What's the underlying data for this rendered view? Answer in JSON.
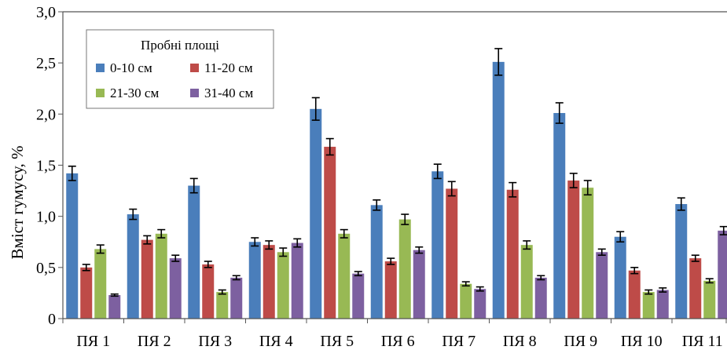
{
  "chart_data": {
    "type": "bar",
    "ylabel": "Вміст гумусу, %",
    "ylim": [
      0,
      3.0
    ],
    "yticks": [
      "0",
      "0,5",
      "1,0",
      "1,5",
      "2,0",
      "2,5",
      "3,0"
    ],
    "categories": [
      "ПЯ 1",
      "ПЯ 2",
      "ПЯ 3",
      "ПЯ 4",
      "ПЯ 5",
      "ПЯ 6",
      "ПЯ 7",
      "ПЯ 8",
      "ПЯ 9",
      "ПЯ 10",
      "ПЯ 11"
    ],
    "legend": {
      "title": "Пробні площі",
      "position": "top-left"
    },
    "grid": false,
    "series": [
      {
        "name": "0-10 см",
        "color": "#4a7ebb",
        "values": [
          1.42,
          1.02,
          1.3,
          0.75,
          2.05,
          1.11,
          1.44,
          2.51,
          2.01,
          0.8,
          1.12
        ],
        "errors": [
          0.07,
          0.05,
          0.07,
          0.04,
          0.11,
          0.05,
          0.07,
          0.13,
          0.1,
          0.05,
          0.06
        ]
      },
      {
        "name": "11-20 см",
        "color": "#be4b48",
        "values": [
          0.5,
          0.77,
          0.53,
          0.72,
          1.68,
          0.56,
          1.27,
          1.26,
          1.35,
          0.47,
          0.59
        ],
        "errors": [
          0.03,
          0.04,
          0.03,
          0.04,
          0.08,
          0.03,
          0.07,
          0.07,
          0.07,
          0.03,
          0.03
        ]
      },
      {
        "name": "21-30 см",
        "color": "#98b954",
        "values": [
          0.68,
          0.83,
          0.26,
          0.65,
          0.83,
          0.97,
          0.34,
          0.72,
          1.28,
          0.26,
          0.37
        ],
        "errors": [
          0.04,
          0.04,
          0.02,
          0.04,
          0.04,
          0.05,
          0.02,
          0.04,
          0.07,
          0.02,
          0.02
        ]
      },
      {
        "name": "31-40 см",
        "color": "#7d60a0",
        "values": [
          0.23,
          0.59,
          0.4,
          0.74,
          0.44,
          0.67,
          0.29,
          0.4,
          0.65,
          0.28,
          0.86
        ],
        "errors": [
          0.01,
          0.03,
          0.02,
          0.04,
          0.02,
          0.03,
          0.02,
          0.02,
          0.03,
          0.02,
          0.04
        ]
      }
    ]
  }
}
